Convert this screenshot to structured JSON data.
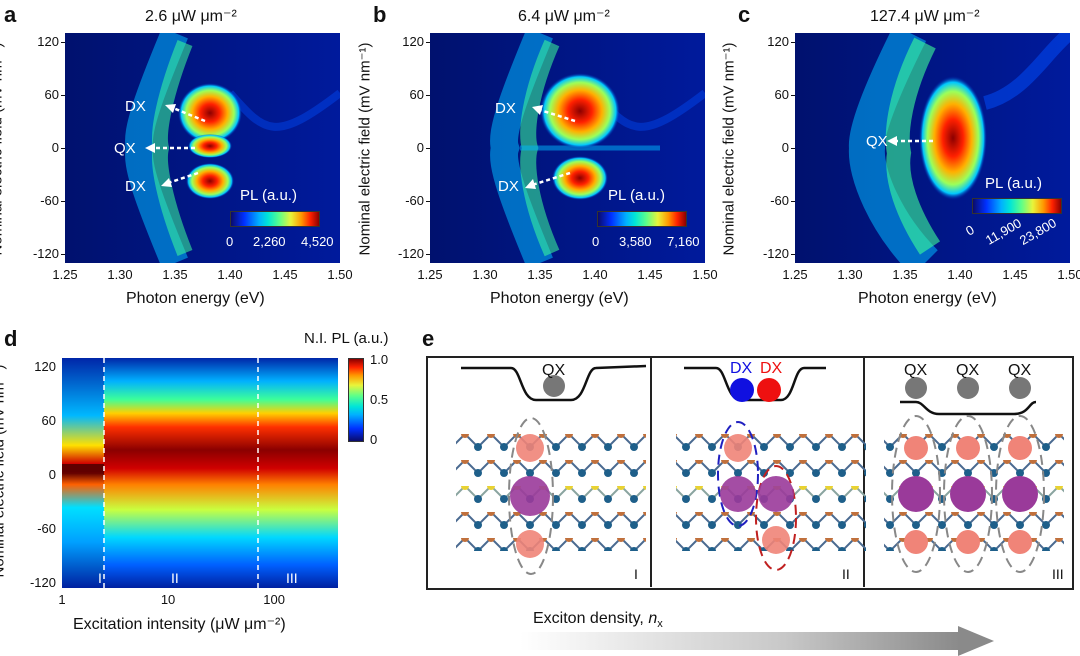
{
  "panels": {
    "a": {
      "letter": "a",
      "title": "2.6 μW μm⁻²",
      "cbar_label": "PL (a.u.)",
      "cbar_ticks": [
        "0",
        "2,260",
        "4,520"
      ],
      "annotations": [
        "DX",
        "QX",
        "DX"
      ]
    },
    "b": {
      "letter": "b",
      "title": "6.4 μW μm⁻²",
      "cbar_label": "PL (a.u.)",
      "cbar_ticks": [
        "0",
        "3,580",
        "7,160"
      ],
      "annotations": [
        "DX",
        "DX"
      ]
    },
    "c": {
      "letter": "c",
      "title": "127.4 μW μm⁻²",
      "cbar_label": "PL (a.u.)",
      "cbar_ticks": [
        "0",
        "11,900",
        "23,800"
      ],
      "annotations": [
        "QX"
      ]
    },
    "d": {
      "letter": "d",
      "cbar_label": "N.I. PL (a.u.)",
      "cbar_ticks": [
        "1.0",
        "0.5",
        "0"
      ],
      "regions": [
        "I",
        "II",
        "III"
      ]
    },
    "e": {
      "letter": "e",
      "regions": [
        "I",
        "II",
        "III"
      ],
      "labels": {
        "qx": "QX",
        "dx": "DX"
      },
      "density_label": "Exciton density, ",
      "density_symbol": "n",
      "density_sub": "x"
    }
  },
  "axes": {
    "ylabel": "Nominal electric field (mV nm⁻¹)",
    "xlabel_top": "Photon energy (eV)",
    "xlabel_d": "Excitation intensity (μW μm⁻²)",
    "y_ticks": [
      "120",
      "60",
      "0",
      "-60",
      "-120"
    ],
    "x_ticks_top": [
      "1.25",
      "1.30",
      "1.35",
      "1.40",
      "1.45",
      "1.50"
    ],
    "x_ticks_d": [
      "1",
      "10",
      "100"
    ]
  },
  "chart_data": [
    {
      "type": "heatmap",
      "panel": "a",
      "title": "2.6 μW μm⁻²",
      "xlabel": "Photon energy (eV)",
      "ylabel": "Nominal electric field (mV nm⁻¹)",
      "xlim": [
        1.25,
        1.5
      ],
      "ylim": [
        -130,
        130
      ],
      "colorbar": {
        "label": "PL (a.u.)",
        "range": [
          0,
          4520
        ]
      },
      "features": [
        {
          "name": "DX",
          "energy": 1.385,
          "field": 35
        },
        {
          "name": "QX",
          "energy": 1.385,
          "field": 0
        },
        {
          "name": "DX",
          "energy": 1.385,
          "field": -35
        }
      ]
    },
    {
      "type": "heatmap",
      "panel": "b",
      "title": "6.4 μW μm⁻²",
      "xlabel": "Photon energy (eV)",
      "ylabel": "Nominal electric field (mV nm⁻¹)",
      "xlim": [
        1.25,
        1.5
      ],
      "ylim": [
        -130,
        130
      ],
      "colorbar": {
        "label": "PL (a.u.)",
        "range": [
          0,
          7160
        ]
      },
      "features": [
        {
          "name": "DX",
          "energy": 1.385,
          "field": 35
        },
        {
          "name": "DX",
          "energy": 1.385,
          "field": -30
        }
      ]
    },
    {
      "type": "heatmap",
      "panel": "c",
      "title": "127.4 μW μm⁻²",
      "xlabel": "Photon energy (eV)",
      "ylabel": "Nominal electric field (mV nm⁻¹)",
      "xlim": [
        1.25,
        1.5
      ],
      "ylim": [
        -130,
        130
      ],
      "colorbar": {
        "label": "PL (a.u.)",
        "range": [
          0,
          23800
        ]
      },
      "features": [
        {
          "name": "QX",
          "energy": 1.405,
          "field": 10
        }
      ]
    },
    {
      "type": "heatmap",
      "panel": "d",
      "xlabel": "Excitation intensity (μW μm⁻²)",
      "ylabel": "Nominal electric field (mV nm⁻¹)",
      "xscale": "log",
      "xlim": [
        1,
        400
      ],
      "ylim": [
        -125,
        130
      ],
      "colorbar": {
        "label": "N.I. PL (a.u.)",
        "range": [
          0,
          1.0
        ]
      },
      "region_boundaries": [
        2.5,
        70
      ],
      "regions": [
        "I",
        "II",
        "III"
      ]
    }
  ]
}
